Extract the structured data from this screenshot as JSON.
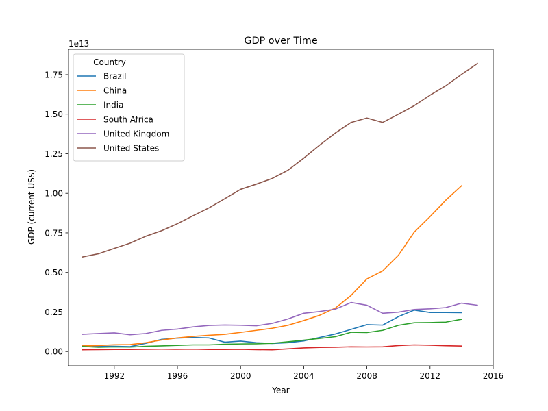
{
  "chart_data": {
    "type": "line",
    "title": "GDP over Time",
    "xlabel": "Year",
    "ylabel": "GDP (current US$)",
    "y_offset_label": "1e13",
    "xlim": [
      1989.1,
      2016.0
    ],
    "ylim": [
      -0.09,
      1.91
    ],
    "y_scale_multiplier": 10000000000000.0,
    "x_ticks": [
      1992,
      1996,
      2000,
      2004,
      2008,
      2012,
      2016
    ],
    "y_ticks": [
      0.0,
      0.25,
      0.5,
      0.75,
      1.0,
      1.25,
      1.5,
      1.75
    ],
    "y_tick_labels": [
      "0.00",
      "0.25",
      "0.50",
      "0.75",
      "1.00",
      "1.25",
      "1.50",
      "1.75"
    ],
    "x_tick_labels": [
      "1992",
      "1996",
      "2000",
      "2004",
      "2008",
      "2012",
      "2016"
    ],
    "grid": false,
    "legend": {
      "title": "Country",
      "placement": "top-left"
    },
    "series": [
      {
        "name": "Brazil",
        "color": "#1f77b4",
        "x": [
          1990,
          1991,
          1992,
          1993,
          1994,
          1995,
          1996,
          1997,
          1998,
          1999,
          2000,
          2001,
          2002,
          2003,
          2004,
          2005,
          2006,
          2007,
          2008,
          2009,
          2010,
          2011,
          2012,
          2013,
          2014
        ],
        "values": [
          0.04,
          0.032,
          0.033,
          0.031,
          0.052,
          0.077,
          0.085,
          0.089,
          0.086,
          0.059,
          0.066,
          0.056,
          0.051,
          0.056,
          0.067,
          0.089,
          0.111,
          0.14,
          0.17,
          0.167,
          0.221,
          0.262,
          0.247,
          0.247,
          0.246
        ]
      },
      {
        "name": "China",
        "color": "#ff7f0e",
        "x": [
          1990,
          1991,
          1992,
          1993,
          1994,
          1995,
          1996,
          1997,
          1998,
          1999,
          2000,
          2001,
          2002,
          2003,
          2004,
          2005,
          2006,
          2007,
          2008,
          2009,
          2010,
          2011,
          2012,
          2013,
          2014
        ],
        "values": [
          0.036,
          0.038,
          0.043,
          0.044,
          0.056,
          0.073,
          0.086,
          0.096,
          0.103,
          0.109,
          0.121,
          0.134,
          0.147,
          0.166,
          0.196,
          0.229,
          0.275,
          0.355,
          0.459,
          0.51,
          0.609,
          0.755,
          0.853,
          0.957,
          1.048
        ]
      },
      {
        "name": "India",
        "color": "#2ca02c",
        "x": [
          1990,
          1991,
          1992,
          1993,
          1994,
          1995,
          1996,
          1997,
          1998,
          1999,
          2000,
          2001,
          2002,
          2003,
          2004,
          2005,
          2006,
          2007,
          2008,
          2009,
          2010,
          2011,
          2012,
          2013,
          2014
        ],
        "values": [
          0.032,
          0.027,
          0.029,
          0.028,
          0.033,
          0.036,
          0.039,
          0.042,
          0.042,
          0.046,
          0.048,
          0.049,
          0.052,
          0.062,
          0.072,
          0.083,
          0.094,
          0.122,
          0.12,
          0.134,
          0.166,
          0.182,
          0.183,
          0.186,
          0.204
        ]
      },
      {
        "name": "South Africa",
        "color": "#d62728",
        "x": [
          1990,
          1991,
          1992,
          1993,
          1994,
          1995,
          1996,
          1997,
          1998,
          1999,
          2000,
          2001,
          2002,
          2003,
          2004,
          2005,
          2006,
          2007,
          2008,
          2009,
          2010,
          2011,
          2012,
          2013,
          2014
        ],
        "values": [
          0.011,
          0.012,
          0.013,
          0.013,
          0.014,
          0.015,
          0.014,
          0.015,
          0.013,
          0.013,
          0.014,
          0.012,
          0.011,
          0.017,
          0.023,
          0.026,
          0.027,
          0.03,
          0.029,
          0.03,
          0.038,
          0.042,
          0.04,
          0.037,
          0.035
        ]
      },
      {
        "name": "United Kingdom",
        "color": "#9467bd",
        "x": [
          1990,
          1991,
          1992,
          1993,
          1994,
          1995,
          1996,
          1997,
          1998,
          1999,
          2000,
          2001,
          2002,
          2003,
          2004,
          2005,
          2006,
          2007,
          2008,
          2009,
          2010,
          2011,
          2012,
          2013,
          2014,
          2015
        ],
        "values": [
          0.109,
          0.114,
          0.118,
          0.106,
          0.114,
          0.134,
          0.142,
          0.156,
          0.165,
          0.168,
          0.166,
          0.163,
          0.178,
          0.206,
          0.242,
          0.253,
          0.268,
          0.31,
          0.293,
          0.242,
          0.249,
          0.266,
          0.27,
          0.278,
          0.306,
          0.293
        ]
      },
      {
        "name": "United States",
        "color": "#8c564b",
        "x": [
          1990,
          1991,
          1992,
          1993,
          1994,
          1995,
          1996,
          1997,
          1998,
          1999,
          2000,
          2001,
          2002,
          2003,
          2004,
          2005,
          2006,
          2007,
          2008,
          2009,
          2010,
          2011,
          2012,
          2013,
          2014,
          2015
        ],
        "values": [
          0.598,
          0.618,
          0.652,
          0.685,
          0.729,
          0.764,
          0.808,
          0.859,
          0.908,
          0.966,
          1.025,
          1.058,
          1.094,
          1.146,
          1.222,
          1.304,
          1.381,
          1.448,
          1.476,
          1.448,
          1.5,
          1.554,
          1.62,
          1.68,
          1.752,
          1.82
        ]
      }
    ]
  }
}
